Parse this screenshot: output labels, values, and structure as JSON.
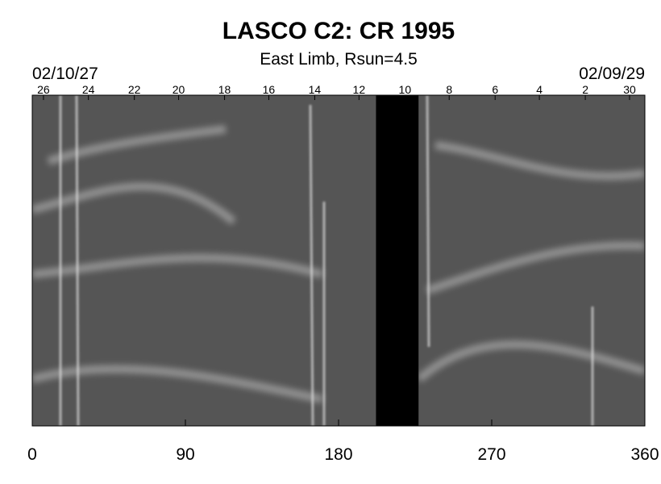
{
  "chart_data": {
    "type": "synoptic-map",
    "title": "LASCO C2: CR 1995",
    "subtitle": "East Limb, Rsun=4.5",
    "start_date": "02/10/27",
    "end_date": "02/09/29",
    "xlim": [
      0,
      360
    ],
    "xticks": [
      0,
      90,
      180,
      270,
      360
    ],
    "x2ticks": [
      {
        "value": 6.6,
        "label": "26"
      },
      {
        "value": 33,
        "label": "24"
      },
      {
        "value": 60,
        "label": "22"
      },
      {
        "value": 86,
        "label": "20"
      },
      {
        "value": 113,
        "label": "18"
      },
      {
        "value": 139,
        "label": "16"
      },
      {
        "value": 166,
        "label": "14"
      },
      {
        "value": 192,
        "label": "12"
      },
      {
        "value": 219,
        "label": "10"
      },
      {
        "value": 245,
        "label": "8"
      },
      {
        "value": 272,
        "label": "6"
      },
      {
        "value": 298,
        "label": "4"
      },
      {
        "value": 325,
        "label": "2"
      },
      {
        "value": 351,
        "label": "30"
      }
    ],
    "data_gap": [
      202,
      227
    ],
    "gap_color": "#000000"
  }
}
